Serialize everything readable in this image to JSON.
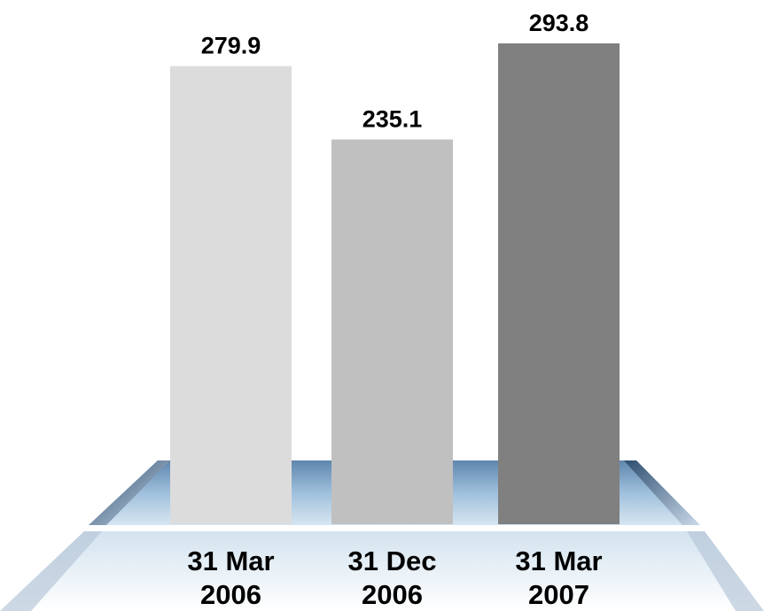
{
  "chart_data": {
    "type": "bar",
    "categories": [
      [
        "31 Mar",
        "2006"
      ],
      [
        "31 Dec",
        "2006"
      ],
      [
        "31 Mar",
        "2007"
      ]
    ],
    "values": [
      279.9,
      235.1,
      293.8
    ],
    "colors": [
      "#dcdcdc",
      "#c0c0c0",
      "#808080"
    ]
  }
}
